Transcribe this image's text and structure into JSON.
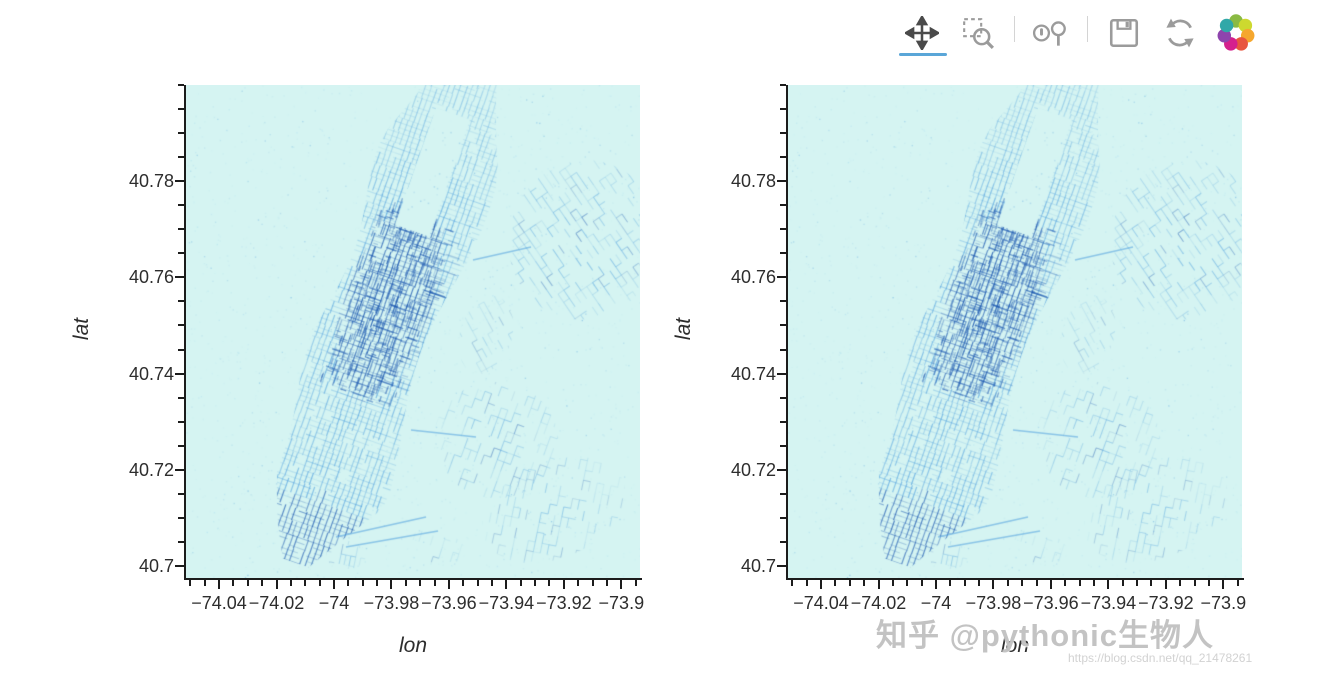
{
  "page": {
    "background": "#ffffff",
    "accent_blue": "#5aa6d8"
  },
  "toolbar": {
    "active_tool": "pan",
    "active_underline_color": "#5aa6d8",
    "icon_color_active": "#4a4a4a",
    "icon_color_inactive": "#9b9b9b",
    "tools": [
      {
        "name": "pan",
        "icon": "pan-arrows-icon",
        "active": true
      },
      {
        "name": "box-zoom",
        "icon": "box-zoom-magnifier-icon",
        "active": false
      },
      {
        "name": "wheel-zoom",
        "icon": "wheel-zoom-icon",
        "active": false
      },
      {
        "name": "save",
        "icon": "save-floppy-icon",
        "active": false
      },
      {
        "name": "reset",
        "icon": "reset-arrows-icon",
        "active": false
      },
      {
        "name": "logo",
        "icon": "bokeh-logo",
        "active": false
      }
    ],
    "logo_colors": [
      "#8aba43",
      "#cdd92f",
      "#f5a72e",
      "#e8563f",
      "#d5208d",
      "#8e44ad",
      "#30a8a8"
    ]
  },
  "watermark": {
    "text": "知乎 @pythonic生物人",
    "sub": "https://blog.csdn.net/qq_21478261"
  },
  "chart_data": [
    {
      "type": "heatmap",
      "title": "",
      "xlabel": "lon",
      "ylabel": "lat",
      "xlim": [
        -74.0515,
        -73.8935
      ],
      "ylim": [
        40.6975,
        40.8
      ],
      "x_ticks": [
        -74.04,
        -74.02,
        -74,
        -73.98,
        -73.96,
        -73.94,
        -73.92,
        -73.9
      ],
      "x_tick_labels": [
        "−74.04",
        "−74.02",
        "−74",
        "−73.98",
        "−73.96",
        "−73.94",
        "−73.92",
        "−73.9"
      ],
      "y_ticks": [
        40.7,
        40.72,
        40.74,
        40.76,
        40.78
      ],
      "y_tick_labels": [
        "40.7",
        "40.72",
        "40.74",
        "40.76",
        "40.78"
      ],
      "grid": false,
      "legend": "none",
      "colormap": [
        "#d5f4f2",
        "#9fd9f0",
        "#3f96dd",
        "#1a56b0"
      ],
      "data_summary": "Datashaded density raster of NYC taxi pickup points: dense blue Manhattan street grid (darkest around Midtown and the downtown tip), empty cyan rectangle at Central Park, fainter grid patches for Queens (upper right) and Brooklyn (lower right), sparse speckles elsewhere"
    },
    {
      "type": "heatmap",
      "title": "",
      "xlabel": "lon",
      "ylabel": "lat",
      "xlim": [
        -74.0515,
        -73.8935
      ],
      "ylim": [
        40.6975,
        40.8
      ],
      "x_ticks": [
        -74.04,
        -74.02,
        -74,
        -73.98,
        -73.96,
        -73.94,
        -73.92,
        -73.9
      ],
      "x_tick_labels": [
        "−74.04",
        "−74.02",
        "−74",
        "−73.98",
        "−73.96",
        "−73.94",
        "−73.92",
        "−73.9"
      ],
      "y_ticks": [
        40.7,
        40.72,
        40.74,
        40.76,
        40.78
      ],
      "y_tick_labels": [
        "40.7",
        "40.72",
        "40.74",
        "40.76",
        "40.78"
      ],
      "grid": false,
      "legend": "none",
      "colormap": [
        "#d5f4f2",
        "#9fd9f0",
        "#3f96dd",
        "#1a56b0"
      ],
      "data_summary": "Identical datashaded NYC taxi pickup density raster as left panel"
    }
  ]
}
